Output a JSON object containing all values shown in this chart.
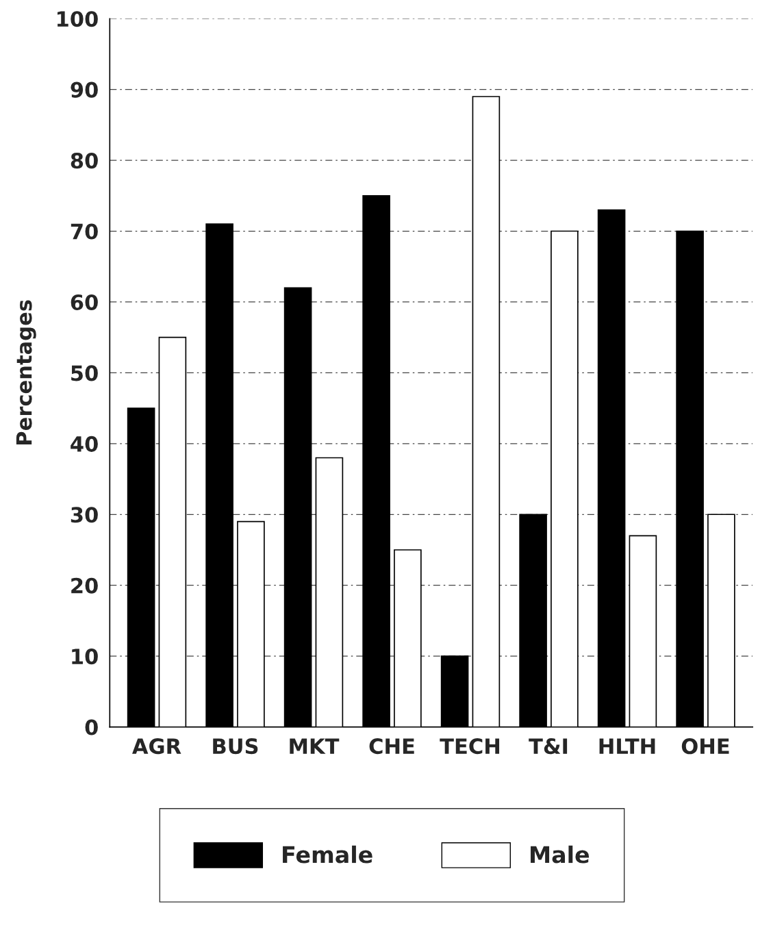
{
  "chart_data": {
    "type": "bar",
    "ylabel": "Percentages",
    "categories": [
      "AGR",
      "BUS",
      "MKT",
      "CHE",
      "TECH",
      "T&I",
      "HLTH",
      "OHE"
    ],
    "series": [
      {
        "name": "Female",
        "color": "#000000",
        "values": [
          45,
          71,
          62,
          75,
          10,
          30,
          73,
          70
        ]
      },
      {
        "name": "Male",
        "color": "#ffffff",
        "values": [
          55,
          29,
          38,
          25,
          89,
          70,
          27,
          30
        ]
      }
    ],
    "ylim": [
      0,
      100
    ],
    "yticks": [
      0,
      10,
      20,
      30,
      40,
      50,
      60,
      70,
      80,
      90,
      100
    ],
    "grid": "y",
    "legend": "bottom"
  }
}
